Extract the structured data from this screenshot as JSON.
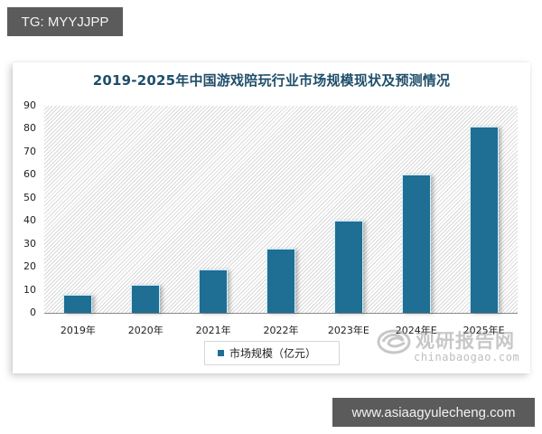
{
  "overlay": {
    "tag_label": "TG: MYYJJPP",
    "site_label": "www.asiaagyulecheng.com"
  },
  "chart": {
    "title": "2019-2025年中国游戏陪玩行业市场规模现状及预测情况",
    "legend_label": "市场规模（亿元）",
    "y_ticks": [
      "90",
      "80",
      "70",
      "60",
      "50",
      "40",
      "30",
      "20",
      "10",
      "0"
    ],
    "x_labels": [
      "2019年",
      "2020年",
      "2021年",
      "2022年",
      "2023年E",
      "2024年E",
      "2025年E"
    ],
    "bar_color": "#1f6e94",
    "title_color": "#1f4e6a"
  },
  "watermark": {
    "brand_cn": "观研报告网",
    "brand_en": "chinabaogao.com"
  },
  "chart_data": {
    "type": "bar",
    "title": "2019-2025年中国游戏陪玩行业市场规模现状及预测情况",
    "categories": [
      "2019年",
      "2020年",
      "2021年",
      "2022年",
      "2023年E",
      "2024年E",
      "2025年E"
    ],
    "series": [
      {
        "name": "市场规模（亿元）",
        "values": [
          8,
          12,
          19,
          28,
          40,
          60,
          81
        ]
      }
    ],
    "xlabel": "",
    "ylabel": "",
    "ylim": [
      0,
      90
    ],
    "yticks": [
      0,
      10,
      20,
      30,
      40,
      50,
      60,
      70,
      80,
      90
    ],
    "grid": false,
    "background": "diagonal hatch",
    "legend_position": "bottom"
  }
}
